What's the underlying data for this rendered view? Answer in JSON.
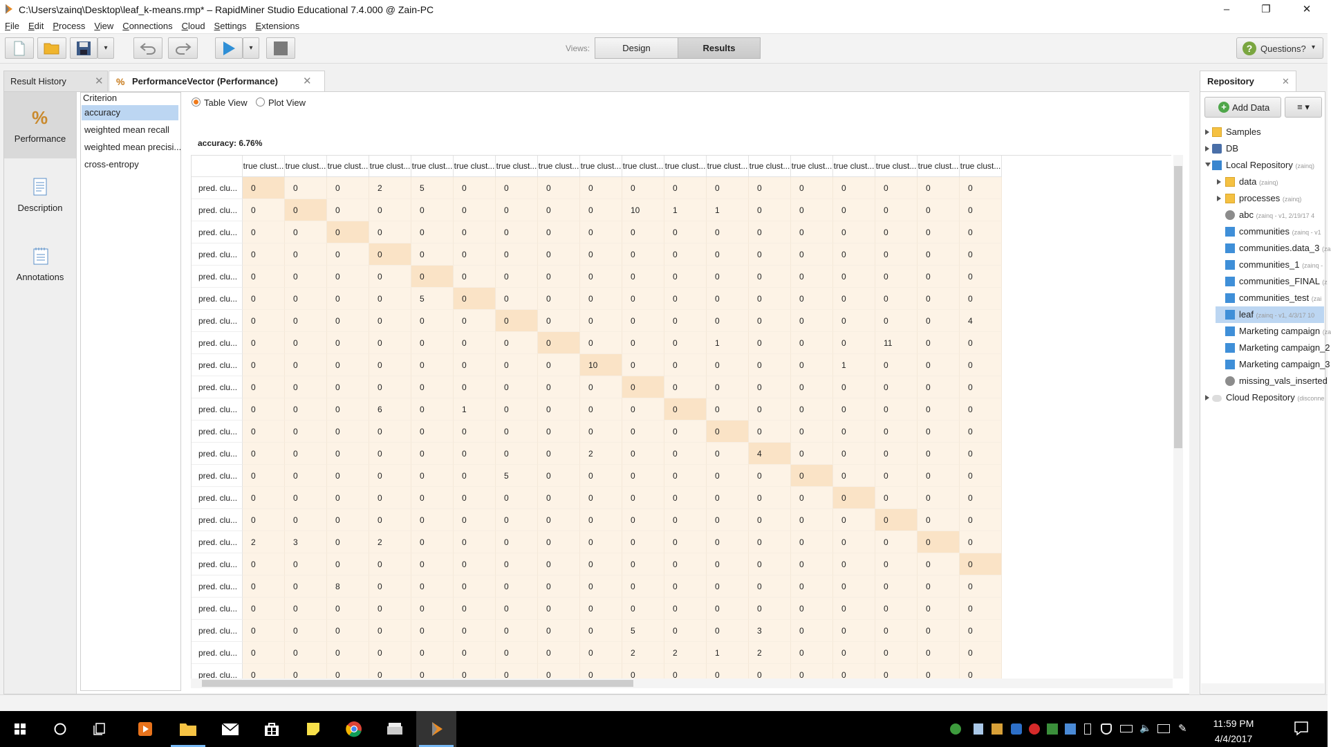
{
  "window": {
    "title": "C:\\Users\\zainq\\Desktop\\leaf_k-means.rmp* – RapidMiner Studio Educational 7.4.000 @ Zain-PC",
    "minimize": "–",
    "maximize": "❐",
    "close": "✕"
  },
  "menu": [
    "File",
    "Edit",
    "Process",
    "View",
    "Connections",
    "Cloud",
    "Settings",
    "Extensions"
  ],
  "toolbar": {
    "views_label": "Views:",
    "design_label": "Design",
    "results_label": "Results",
    "questions_label": "Questions?",
    "dropdown_glyph": "▾",
    "icons": [
      "new-process-icon",
      "open-folder-icon",
      "save-disk-icon",
      "undo-icon",
      "redo-icon",
      "run-play-icon",
      "stop-icon"
    ],
    "colors": {
      "play": "#2f8fd6",
      "folder": "#f0b52e"
    }
  },
  "tabs": {
    "result_history": "Result History",
    "performance": "PerformanceVector (Performance)",
    "close_glyph": "✕"
  },
  "sidenav": [
    "Performance",
    "Description",
    "Annotations"
  ],
  "criterion": {
    "title": "Criterion",
    "items": [
      "accuracy",
      "weighted mean recall",
      "weighted mean precisi...",
      "cross-entropy"
    ]
  },
  "view_options": {
    "table": "Table View",
    "plot": "Plot View",
    "selected": "Table View"
  },
  "accuracy_label": "accuracy: 6.76%",
  "table": {
    "header": "true clust...",
    "row_label": "pred. clu...",
    "rows": [
      [
        0,
        0,
        0,
        2,
        5,
        0,
        0,
        0,
        0,
        0,
        0,
        0,
        0,
        0,
        0,
        0,
        0,
        0
      ],
      [
        0,
        0,
        0,
        0,
        0,
        0,
        0,
        0,
        0,
        10,
        1,
        1,
        0,
        0,
        0,
        0,
        0,
        0
      ],
      [
        0,
        0,
        0,
        0,
        0,
        0,
        0,
        0,
        0,
        0,
        0,
        0,
        0,
        0,
        0,
        0,
        0,
        0
      ],
      [
        0,
        0,
        0,
        0,
        0,
        0,
        0,
        0,
        0,
        0,
        0,
        0,
        0,
        0,
        0,
        0,
        0,
        0
      ],
      [
        0,
        0,
        0,
        0,
        0,
        0,
        0,
        0,
        0,
        0,
        0,
        0,
        0,
        0,
        0,
        0,
        0,
        0
      ],
      [
        0,
        0,
        0,
        0,
        5,
        0,
        0,
        0,
        0,
        0,
        0,
        0,
        0,
        0,
        0,
        0,
        0,
        0
      ],
      [
        0,
        0,
        0,
        0,
        0,
        0,
        0,
        0,
        0,
        0,
        0,
        0,
        0,
        0,
        0,
        0,
        0,
        4
      ],
      [
        0,
        0,
        0,
        0,
        0,
        0,
        0,
        0,
        0,
        0,
        0,
        1,
        0,
        0,
        0,
        11,
        0,
        0
      ],
      [
        0,
        0,
        0,
        0,
        0,
        0,
        0,
        0,
        10,
        0,
        0,
        0,
        0,
        0,
        1,
        0,
        0,
        0
      ],
      [
        0,
        0,
        0,
        0,
        0,
        0,
        0,
        0,
        0,
        0,
        0,
        0,
        0,
        0,
        0,
        0,
        0,
        0
      ],
      [
        0,
        0,
        0,
        6,
        0,
        1,
        0,
        0,
        0,
        0,
        0,
        0,
        0,
        0,
        0,
        0,
        0,
        0
      ],
      [
        0,
        0,
        0,
        0,
        0,
        0,
        0,
        0,
        0,
        0,
        0,
        0,
        0,
        0,
        0,
        0,
        0,
        0
      ],
      [
        0,
        0,
        0,
        0,
        0,
        0,
        0,
        0,
        2,
        0,
        0,
        0,
        4,
        0,
        0,
        0,
        0,
        0
      ],
      [
        0,
        0,
        0,
        0,
        0,
        0,
        5,
        0,
        0,
        0,
        0,
        0,
        0,
        0,
        0,
        0,
        0,
        0
      ],
      [
        0,
        0,
        0,
        0,
        0,
        0,
        0,
        0,
        0,
        0,
        0,
        0,
        0,
        0,
        0,
        0,
        0,
        0
      ],
      [
        0,
        0,
        0,
        0,
        0,
        0,
        0,
        0,
        0,
        0,
        0,
        0,
        0,
        0,
        0,
        0,
        0,
        0
      ],
      [
        2,
        3,
        0,
        2,
        0,
        0,
        0,
        0,
        0,
        0,
        0,
        0,
        0,
        0,
        0,
        0,
        0,
        0
      ],
      [
        0,
        0,
        0,
        0,
        0,
        0,
        0,
        0,
        0,
        0,
        0,
        0,
        0,
        0,
        0,
        0,
        0,
        0
      ],
      [
        0,
        0,
        8,
        0,
        0,
        0,
        0,
        0,
        0,
        0,
        0,
        0,
        0,
        0,
        0,
        0,
        0,
        0
      ],
      [
        0,
        0,
        0,
        0,
        0,
        0,
        0,
        0,
        0,
        0,
        0,
        0,
        0,
        0,
        0,
        0,
        0,
        0
      ],
      [
        0,
        0,
        0,
        0,
        0,
        0,
        0,
        0,
        0,
        5,
        0,
        0,
        3,
        0,
        0,
        0,
        0,
        0
      ],
      [
        0,
        0,
        0,
        0,
        0,
        0,
        0,
        0,
        0,
        2,
        2,
        1,
        2,
        0,
        0,
        0,
        0,
        0
      ],
      [
        0,
        0,
        0,
        0,
        0,
        0,
        0,
        0,
        0,
        0,
        0,
        0,
        0,
        0,
        0,
        0,
        0,
        0
      ]
    ],
    "colors": {
      "cell": "#fdf3e6",
      "diagonal": "#fae3c6"
    }
  },
  "repository": {
    "title": "Repository",
    "add_data": "Add Data",
    "menu_glyph": "≡ ▾",
    "items": [
      {
        "label": "Samples",
        "meta": "",
        "icon": "folder-icon",
        "expand": "collapsed",
        "level": 0
      },
      {
        "label": "DB",
        "meta": "",
        "icon": "db-icon",
        "expand": "collapsed",
        "level": 0
      },
      {
        "label": "Local Repository",
        "meta": "(zainq)",
        "icon": "computer-icon",
        "expand": "expanded",
        "level": 0
      },
      {
        "label": "data",
        "meta": "(zainq)",
        "icon": "folder-icon",
        "expand": "collapsed",
        "level": 1
      },
      {
        "label": "processes",
        "meta": "(zainq)",
        "icon": "folder-icon",
        "expand": "collapsed",
        "level": 1
      },
      {
        "label": "abc",
        "meta": "(zainq - v1, 2/19/17 4",
        "icon": "process-gear-icon",
        "expand": "none",
        "level": 1
      },
      {
        "label": "communities",
        "meta": "(zainq - v1",
        "icon": "dataset-icon",
        "expand": "none",
        "level": 1
      },
      {
        "label": "communities.data_3",
        "meta": "(za",
        "icon": "dataset-icon",
        "expand": "none",
        "level": 1
      },
      {
        "label": "communities_1",
        "meta": "(zainq -",
        "icon": "dataset-icon",
        "expand": "none",
        "level": 1
      },
      {
        "label": "communities_FINAL",
        "meta": "(z",
        "icon": "dataset-icon",
        "expand": "none",
        "level": 1
      },
      {
        "label": "communities_test",
        "meta": "(zai",
        "icon": "dataset-icon",
        "expand": "none",
        "level": 1
      },
      {
        "label": "leaf",
        "meta": "(zainq - v1, 4/3/17 10",
        "icon": "dataset-icon",
        "expand": "none",
        "level": 1,
        "selected": true
      },
      {
        "label": "Marketing campaign",
        "meta": "(za",
        "icon": "dataset-icon",
        "expand": "none",
        "level": 1
      },
      {
        "label": "Marketing campaign_2",
        "meta": "",
        "icon": "dataset-icon",
        "expand": "none",
        "level": 1
      },
      {
        "label": "Marketing campaign_3",
        "meta": "",
        "icon": "dataset-icon",
        "expand": "none",
        "level": 1
      },
      {
        "label": "missing_vals_inserted",
        "meta": "",
        "icon": "process-gear-icon",
        "expand": "none",
        "level": 1
      },
      {
        "label": "Cloud Repository",
        "meta": "(disconne",
        "icon": "cloud-icon",
        "expand": "collapsed",
        "level": 0
      }
    ]
  },
  "taskbar": {
    "time": "11:59 PM",
    "date": "4/4/2017",
    "apps": [
      "windows-start-icon",
      "cortana-search-icon",
      "task-view-icon",
      "media-player-icon",
      "file-explorer-icon",
      "mail-icon",
      "store-icon",
      "sticky-notes-icon",
      "chrome-icon",
      "scanner-icon",
      "rapidminer-icon"
    ]
  }
}
